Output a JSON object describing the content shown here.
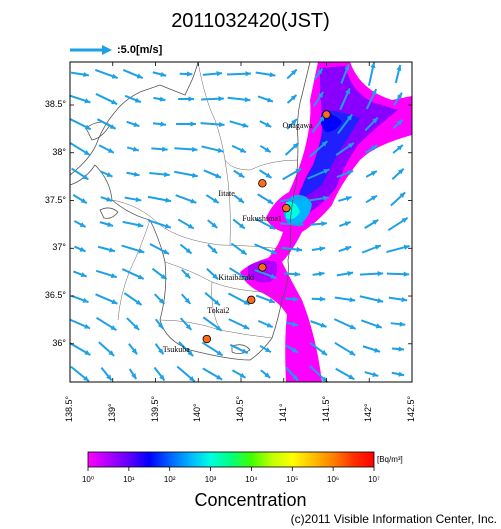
{
  "title": "2011032420(JST)",
  "reference_arrow": {
    "label": ":5.0[m/s]",
    "color": "#1ea0e6"
  },
  "axes": {
    "lat_ticks": [
      "38.5°",
      "38°",
      "37.5°",
      "37°",
      "36.5°",
      "36°"
    ],
    "lon_ticks": [
      "138.5°",
      "139°",
      "139.5°",
      "140°",
      "140.5°",
      "141°",
      "141.5°",
      "142°",
      "142.5°"
    ],
    "lon_range": [
      138.5,
      142.5
    ],
    "lat_range": [
      35.6,
      38.95
    ]
  },
  "locations": [
    {
      "name": "Onagawa",
      "lon": 141.5,
      "lat": 38.4
    },
    {
      "name": "Iitate",
      "lon": 140.75,
      "lat": 37.68
    },
    {
      "name": "Fukushima1",
      "lon": 141.03,
      "lat": 37.42
    },
    {
      "name": "Kitaibaraki",
      "lon": 140.75,
      "lat": 36.8
    },
    {
      "name": "Tokai2",
      "lon": 140.62,
      "lat": 36.46
    },
    {
      "name": "Tsukuba",
      "lon": 140.1,
      "lat": 36.05
    }
  ],
  "colorbar": {
    "title": "Concentration",
    "unit": "[Bq/m³]",
    "tick_labels": [
      "10⁰",
      "10¹",
      "10²",
      "10³",
      "10⁴",
      "10⁵",
      "10⁶",
      "10⁷"
    ],
    "colors": [
      "#ff00ff",
      "#b000ff",
      "#6000ff",
      "#0000ff",
      "#0060ff",
      "#00b4ff",
      "#00ffe0",
      "#00ff80",
      "#40ff00",
      "#c0ff00",
      "#ffff00",
      "#ffc000",
      "#ff8000",
      "#ff3000",
      "#ff0000"
    ]
  },
  "copyright": "(c)2011 Visible Information Center, Inc."
}
